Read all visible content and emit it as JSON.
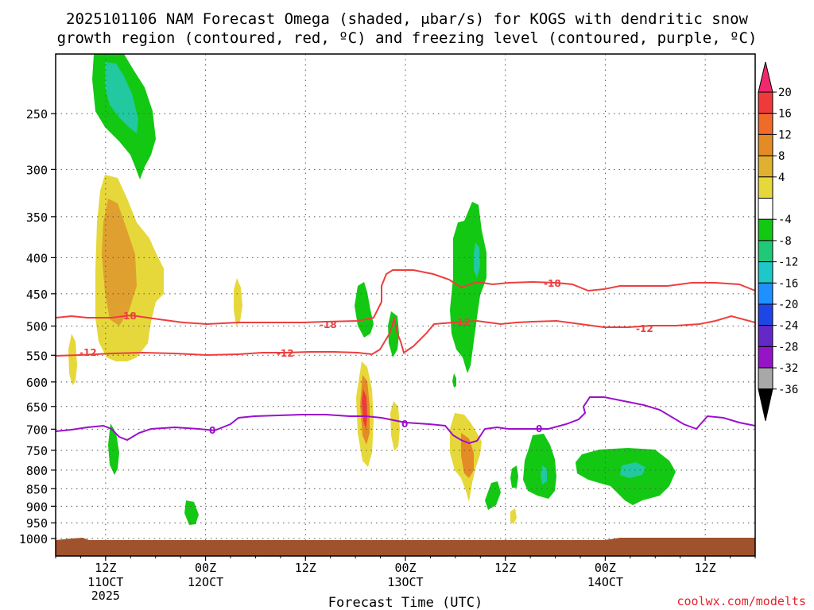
{
  "chart_data": {
    "type": "heatmap",
    "title_line1": "2025101106 NAM Forecast Omega (shaded, μbar/s) for KOGS with dendritic snow",
    "title_line2": "growth region (contoured, red, ºC) and freezing level (contoured, purple, ºC)",
    "xlabel": "Forecast Time (UTC)",
    "ylabel": "",
    "credit": "coolwx.com/modelts",
    "y_ticks": [
      "250",
      "300",
      "350",
      "400",
      "450",
      "500",
      "550",
      "600",
      "650",
      "700",
      "750",
      "800",
      "850",
      "900",
      "950",
      "1000"
    ],
    "y_values": [
      250,
      300,
      350,
      400,
      450,
      500,
      550,
      600,
      650,
      700,
      750,
      800,
      850,
      900,
      950,
      1000
    ],
    "ylim_hpa": [
      200,
      1030
    ],
    "xlim_hours": [
      0,
      84
    ],
    "x_ticks": [
      {
        "hour": 6,
        "line1": "12Z",
        "line2": "11OCT",
        "line3": "2025"
      },
      {
        "hour": 18,
        "line1": "00Z",
        "line2": "12OCT",
        "line3": ""
      },
      {
        "hour": 30,
        "line1": "12Z",
        "line2": "",
        "line3": ""
      },
      {
        "hour": 42,
        "line1": "00Z",
        "line2": "13OCT",
        "line3": ""
      },
      {
        "hour": 54,
        "line1": "12Z",
        "line2": "",
        "line3": ""
      },
      {
        "hour": 66,
        "line1": "00Z",
        "line2": "14OCT",
        "line3": ""
      },
      {
        "hour": 78,
        "line1": "12Z",
        "line2": "",
        "line3": ""
      }
    ],
    "colorbar": {
      "labels": [
        "20",
        "16",
        "12",
        "8",
        "4",
        "-4",
        "-8",
        "-12",
        "-16",
        "-20",
        "-24",
        "-28",
        "-32",
        "-36"
      ],
      "colors": [
        "#f0286e",
        "#ee3a3a",
        "#f06a2a",
        "#e58b25",
        "#e0b030",
        "#e6d83a",
        "#ffffff",
        "#13c813",
        "#21c878",
        "#1ec8c8",
        "#1e90ff",
        "#1e46e6",
        "#6428c8",
        "#9614c8",
        "#a8a8a8",
        "#000000"
      ]
    },
    "dendritic_contours": [
      {
        "level": -18,
        "label": "-18",
        "color": "#ee3e3e"
      },
      {
        "level": -12,
        "label": "-12",
        "color": "#ee3e3e"
      }
    ],
    "freezing_contour": {
      "level": 0,
      "label": "0",
      "color": "#9b10cc"
    },
    "cells": [
      {
        "sign": "up",
        "level": 4,
        "center_hour": 7,
        "center_hpa": 410,
        "notes": "yellow plume 330-540 hPa"
      },
      {
        "sign": "up",
        "level": 8,
        "center_hour": 7,
        "center_hpa": 400,
        "notes": "orange core"
      },
      {
        "sign": "down",
        "level": -4,
        "center_hour": 7,
        "center_hpa": 240,
        "notes": "green 200-310 hPa"
      },
      {
        "sign": "down",
        "level": -8,
        "center_hour": 7,
        "center_hpa": 235,
        "notes": "teal core"
      },
      {
        "sign": "up",
        "level": 4,
        "center_hour": 1.5,
        "center_hpa": 570
      },
      {
        "sign": "down",
        "level": -4,
        "center_hour": 7,
        "center_hpa": 760
      },
      {
        "sign": "down",
        "level": -4,
        "center_hour": 17,
        "center_hpa": 930
      },
      {
        "sign": "up",
        "level": 4,
        "center_hour": 21.5,
        "center_hpa": 470
      },
      {
        "sign": "down",
        "level": -4,
        "center_hour": 38,
        "center_hpa": 480
      },
      {
        "sign": "down",
        "level": -4,
        "center_hour": 41,
        "center_hpa": 530
      },
      {
        "sign": "up",
        "level": 12,
        "center_hour": 38,
        "center_hpa": 670
      },
      {
        "sign": "up",
        "level": 4,
        "center_hour": 40.5,
        "center_hpa": 700
      },
      {
        "sign": "down",
        "level": -8,
        "center_hour": 50,
        "center_hpa": 430
      },
      {
        "sign": "up",
        "level": 8,
        "center_hour": 50,
        "center_hpa": 770
      },
      {
        "sign": "down",
        "level": -4,
        "center_hour": 52,
        "center_hpa": 880
      },
      {
        "sign": "down",
        "level": -4,
        "center_hour": 57,
        "center_hpa": 830
      },
      {
        "sign": "down",
        "level": -4,
        "center_hour": 61,
        "center_hpa": 810
      },
      {
        "sign": "up",
        "level": 4,
        "center_hour": 57,
        "center_hpa": 950
      },
      {
        "sign": "down",
        "level": -8,
        "center_hour": 69,
        "center_hpa": 810
      }
    ],
    "surface": {
      "label": "terrain",
      "color": "#a0522d"
    }
  }
}
